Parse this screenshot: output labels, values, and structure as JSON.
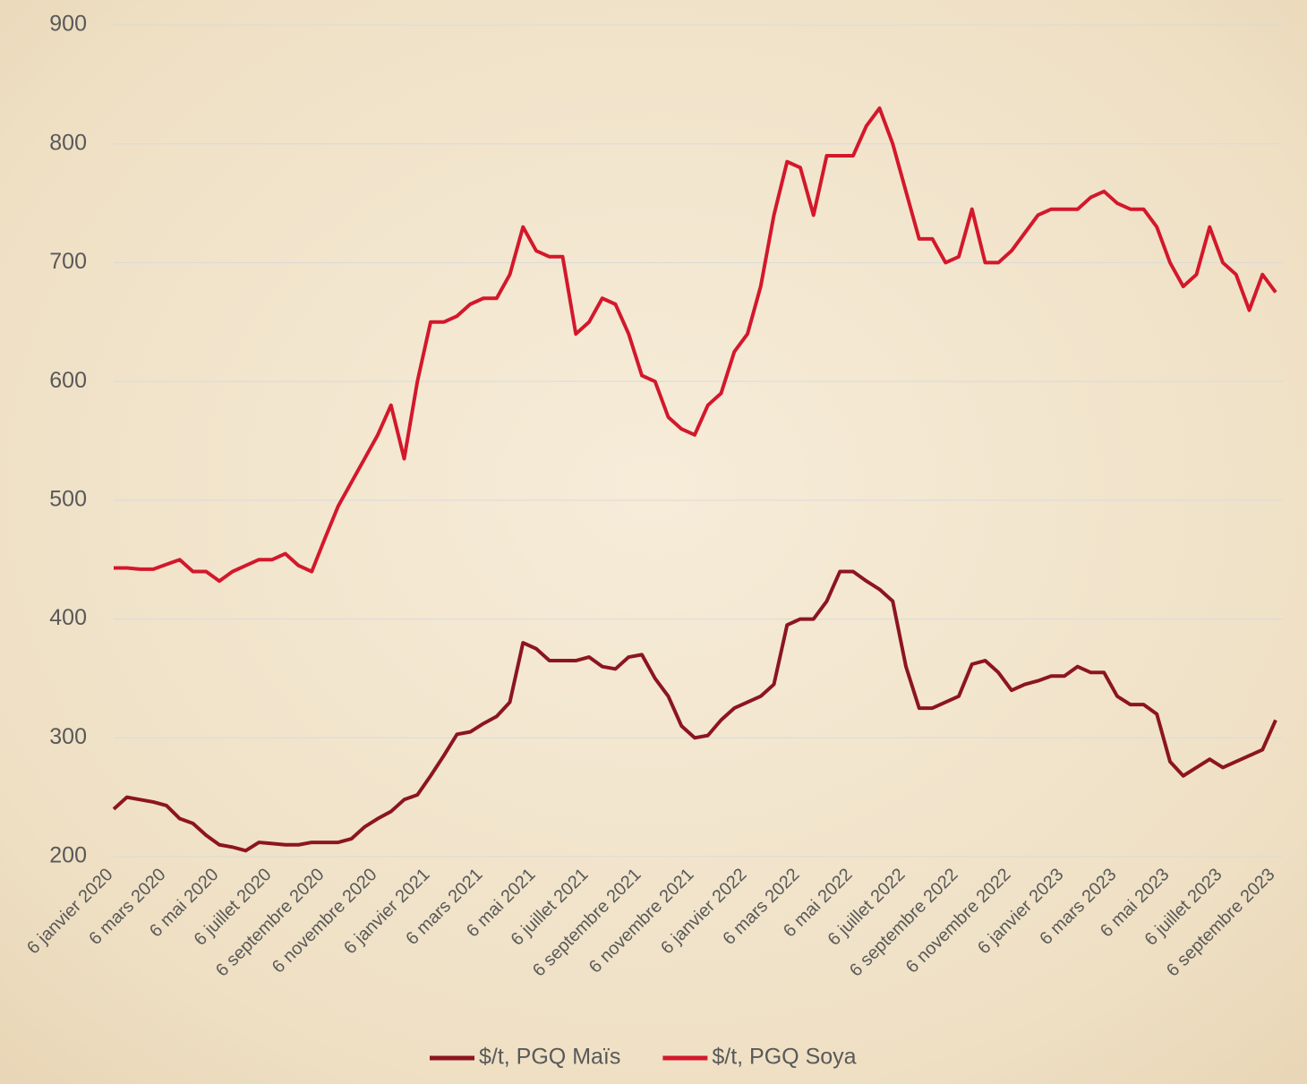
{
  "chart_data": {
    "type": "line",
    "categories": [
      "6 janvier 2020",
      null,
      null,
      null,
      "6 mars 2020",
      null,
      null,
      null,
      "6 mai 2020",
      null,
      null,
      null,
      "6 juillet 2020",
      null,
      null,
      null,
      "6 septembre 2020",
      null,
      null,
      null,
      "6 novembre 2020",
      null,
      null,
      null,
      "6 janvier 2021",
      null,
      null,
      null,
      "6 mars 2021",
      null,
      null,
      null,
      "6 mai 2021",
      null,
      null,
      null,
      "6 juillet 2021",
      null,
      null,
      null,
      "6 septembre 2021",
      null,
      null,
      null,
      "6 novembre 2021",
      null,
      null,
      null,
      "6 janvier 2022",
      null,
      null,
      null,
      "6 mars 2022",
      null,
      null,
      null,
      "6 mai 2022",
      null,
      null,
      null,
      "6 juillet 2022",
      null,
      null,
      null,
      "6 septembre 2022",
      null,
      null,
      null,
      "6 novembre 2022",
      null,
      null,
      null,
      "6 janvier 2023",
      null,
      null,
      null,
      "6 mars 2023",
      null,
      null,
      null,
      "6 mai 2023",
      null,
      null,
      null,
      "6 juillet 2023",
      null,
      null,
      null,
      "6 septembre 2023"
    ],
    "series": [
      {
        "name": "$/t, PGQ Maïs",
        "color": "#8c1520",
        "values": [
          240,
          250,
          248,
          246,
          243,
          232,
          228,
          218,
          210,
          208,
          205,
          212,
          211,
          210,
          210,
          212,
          212,
          212,
          215,
          225,
          232,
          238,
          248,
          252,
          268,
          285,
          303,
          305,
          312,
          318,
          330,
          380,
          375,
          365,
          365,
          365,
          368,
          360,
          358,
          368,
          370,
          350,
          335,
          310,
          300,
          302,
          315,
          325,
          330,
          335,
          345,
          395,
          400,
          400,
          415,
          440,
          440,
          432,
          425,
          415,
          360,
          325,
          325,
          330,
          335,
          362,
          365,
          355,
          340,
          345,
          348,
          352,
          352,
          360,
          355,
          355,
          335,
          328,
          328,
          320,
          280,
          268,
          275,
          282,
          275,
          280,
          285,
          290,
          315
        ]
      },
      {
        "name": "$/t, PGQ Soya",
        "color": "#d3182c",
        "values": [
          443,
          443,
          442,
          442,
          446,
          450,
          440,
          440,
          432,
          440,
          445,
          450,
          450,
          455,
          445,
          440,
          468,
          495,
          515,
          535,
          555,
          580,
          535,
          600,
          650,
          650,
          655,
          665,
          670,
          670,
          690,
          730,
          710,
          705,
          705,
          640,
          650,
          670,
          665,
          640,
          605,
          600,
          570,
          560,
          555,
          580,
          590,
          625,
          640,
          680,
          740,
          785,
          780,
          740,
          790,
          790,
          790,
          815,
          830,
          800,
          760,
          720,
          720,
          700,
          705,
          745,
          700,
          700,
          710,
          725,
          740,
          745,
          745,
          745,
          755,
          760,
          750,
          745,
          745,
          730,
          700,
          680,
          690,
          730,
          700,
          690,
          660,
          690,
          675
        ]
      }
    ],
    "ylim": [
      200,
      900
    ],
    "yticks": [
      200,
      300,
      400,
      500,
      600,
      700,
      800,
      900
    ],
    "grid": true,
    "legend": "bottom"
  }
}
